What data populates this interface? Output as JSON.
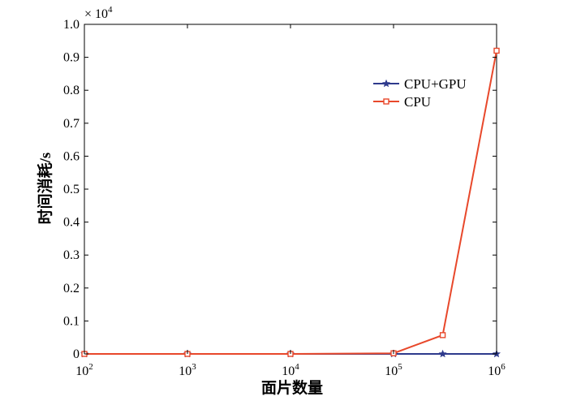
{
  "chart_data": {
    "type": "line",
    "title": "",
    "xlabel": "面片数量",
    "ylabel": "时间消耗/s",
    "xscale": "log",
    "xlim": [
      100,
      1000000
    ],
    "ylim": [
      0,
      1.0
    ],
    "y_multiplier": "× 10",
    "y_multiplier_exp": "4",
    "x_ticks": [
      {
        "value": 100,
        "base": "10",
        "exp": "2"
      },
      {
        "value": 1000,
        "base": "10",
        "exp": "3"
      },
      {
        "value": 10000,
        "base": "10",
        "exp": "4"
      },
      {
        "value": 100000,
        "base": "10",
        "exp": "5"
      },
      {
        "value": 1000000,
        "base": "10",
        "exp": "6"
      }
    ],
    "y_ticks": [
      {
        "value": 0,
        "label": "0"
      },
      {
        "value": 0.1,
        "label": "0.1"
      },
      {
        "value": 0.2,
        "label": "0.2"
      },
      {
        "value": 0.3,
        "label": "0.3"
      },
      {
        "value": 0.4,
        "label": "0.4"
      },
      {
        "value": 0.5,
        "label": "0.5"
      },
      {
        "value": 0.6,
        "label": "0.6"
      },
      {
        "value": 0.7,
        "label": "0.7"
      },
      {
        "value": 0.8,
        "label": "0.8"
      },
      {
        "value": 0.9,
        "label": "0.9"
      },
      {
        "value": 1.0,
        "label": "1.0"
      }
    ],
    "grid": false,
    "legend_position": "top-right",
    "series": [
      {
        "name": "CPU+GPU",
        "color": "#2e3a8c",
        "marker": "star",
        "x": [
          100,
          1000,
          10000,
          100000,
          300000,
          1000000
        ],
        "y": [
          0,
          0,
          0,
          0,
          0,
          0
        ]
      },
      {
        "name": "CPU",
        "color": "#e8482b",
        "marker": "square",
        "x": [
          100,
          1000,
          10000,
          100000,
          300000,
          1000000
        ],
        "y": [
          0,
          0,
          0,
          0.002,
          0.057,
          0.92
        ]
      }
    ]
  }
}
